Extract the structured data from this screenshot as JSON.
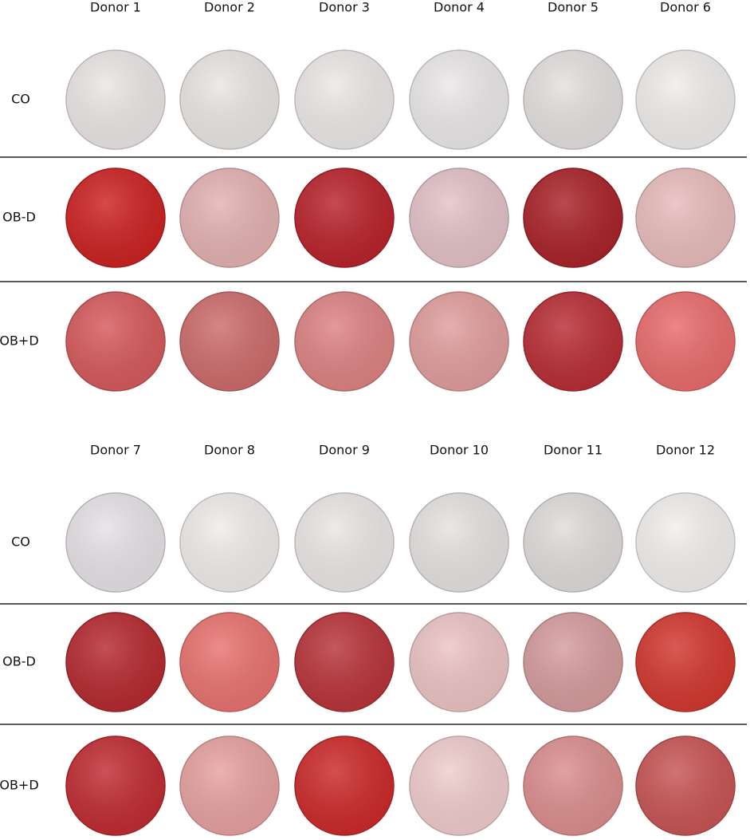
{
  "panels": [
    {
      "donors": [
        "Donor 1",
        "Donor 2",
        "Donor 3",
        "Donor 4",
        "Donor 5",
        "Donor 6"
      ],
      "rows": [
        "CO",
        "OB-D",
        "OB+D"
      ]
    },
    {
      "donors": [
        "Donor 7",
        "Donor 8",
        "Donor 9",
        "Donor 10",
        "Donor 11",
        "Donor 12"
      ],
      "rows": [
        "CO",
        "OB-D",
        "OB+D"
      ]
    }
  ]
}
